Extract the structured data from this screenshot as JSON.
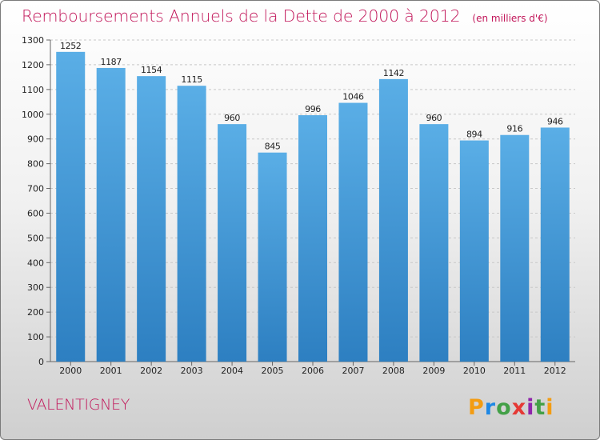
{
  "chart_data": {
    "type": "bar",
    "title": "Remboursements Annuels de la Dette de 2000 à 2012",
    "unit": "(en milliers d'€)",
    "categories": [
      "2000",
      "2001",
      "2002",
      "2003",
      "2004",
      "2005",
      "2006",
      "2007",
      "2008",
      "2009",
      "2010",
      "2011",
      "2012"
    ],
    "values": [
      1252,
      1187,
      1154,
      1115,
      960,
      845,
      996,
      1046,
      1142,
      960,
      894,
      916,
      946
    ],
    "ylim": [
      0,
      1300
    ],
    "yticks": [
      0,
      100,
      200,
      300,
      400,
      500,
      600,
      700,
      800,
      900,
      1000,
      1100,
      1200,
      1300
    ],
    "grid": true,
    "bar_color": "#5aaee6",
    "bar_color_dark": "#2d7fc1"
  },
  "commune": "VALENTIGNEY",
  "brand": "Proxiti",
  "brand_colors": [
    "#f39c12",
    "#1e88e5",
    "#43a047",
    "#e53935",
    "#8e24aa"
  ]
}
